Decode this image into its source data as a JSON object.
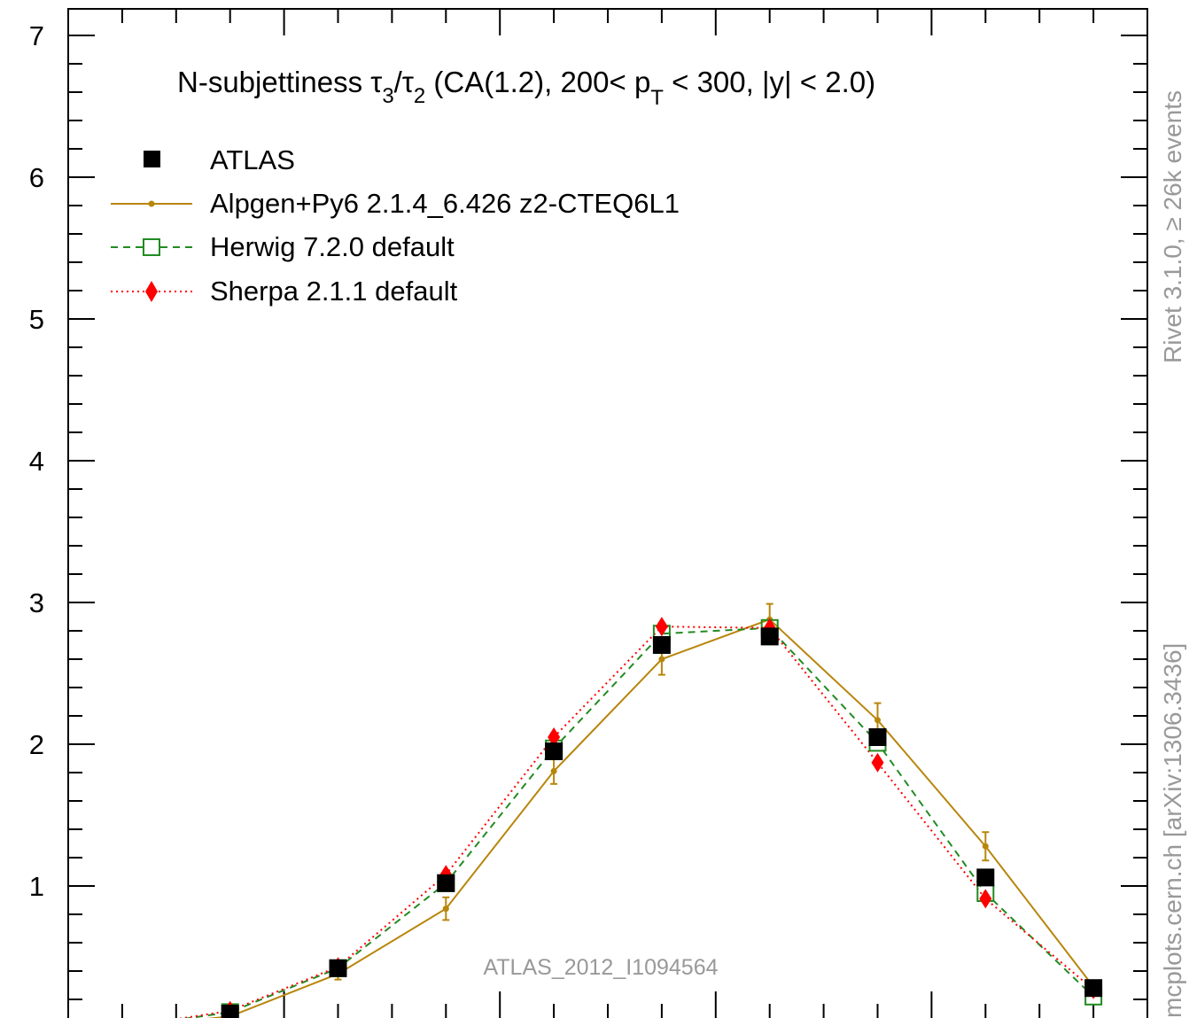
{
  "chart_data": {
    "type": "line",
    "title": "N-subjettiness τ3/τ2 (CA(1.2), 200< pT < 300, |y| < 2.0)",
    "title_parts": {
      "prefix": "N-subjettiness ",
      "tau": "τ",
      "sub3": "3",
      "slash": "/",
      "sub2": "2",
      "mid": " (CA(1.2), 200< p",
      "subT": "T",
      "suffix": " < 300, |y| < 2.0)"
    },
    "xlabel": "",
    "ylabel": "",
    "xlim": [
      0,
      1
    ],
    "ylim": [
      0,
      7.2
    ],
    "x_ticks_major": [
      0.2,
      0.4,
      0.6,
      0.8,
      1.0
    ],
    "y_tick_labels": [
      "0",
      "1",
      "2",
      "3",
      "4",
      "5",
      "6",
      "7"
    ],
    "x": [
      0.05,
      0.15,
      0.25,
      0.35,
      0.45,
      0.55,
      0.65,
      0.75,
      0.85,
      0.95
    ],
    "series": [
      {
        "name": "ATLAS",
        "color": "#000000",
        "marker": "square-filled",
        "line": "none",
        "values": [
          0.0,
          0.1,
          0.42,
          1.02,
          1.95,
          2.7,
          2.76,
          2.05,
          1.06,
          0.28
        ]
      },
      {
        "name": "Alpgen+Py6 2.1.4_6.426 z2-CTEQ6L1",
        "color": "#b8860b",
        "marker": "dot",
        "line": "solid",
        "values": [
          0.0,
          0.08,
          0.38,
          0.84,
          1.81,
          2.6,
          2.88,
          2.17,
          1.28,
          0.29
        ],
        "errors": [
          0.02,
          0.02,
          0.04,
          0.08,
          0.09,
          0.11,
          0.11,
          0.12,
          0.1,
          0.03
        ]
      },
      {
        "name": "Herwig 7.2.0 default",
        "color": "#228b22",
        "marker": "square-open",
        "line": "dashed",
        "values": [
          0.0,
          0.11,
          0.42,
          1.02,
          1.97,
          2.78,
          2.82,
          2.01,
          0.95,
          0.22
        ]
      },
      {
        "name": "Sherpa 2.1.1 default",
        "color": "#ff0000",
        "marker": "diamond",
        "line": "dotted",
        "values": [
          0.0,
          0.12,
          0.43,
          1.08,
          2.05,
          2.83,
          2.82,
          1.87,
          0.91,
          0.27
        ]
      }
    ],
    "legend_position": "top-left",
    "annotation": "ATLAS_2012_I1094564",
    "side_label_top": "Rivet 3.1.0, ≥ 26k events",
    "side_label_bottom": "mcplots.cern.ch [arXiv:1306.3436]",
    "grid": false
  }
}
